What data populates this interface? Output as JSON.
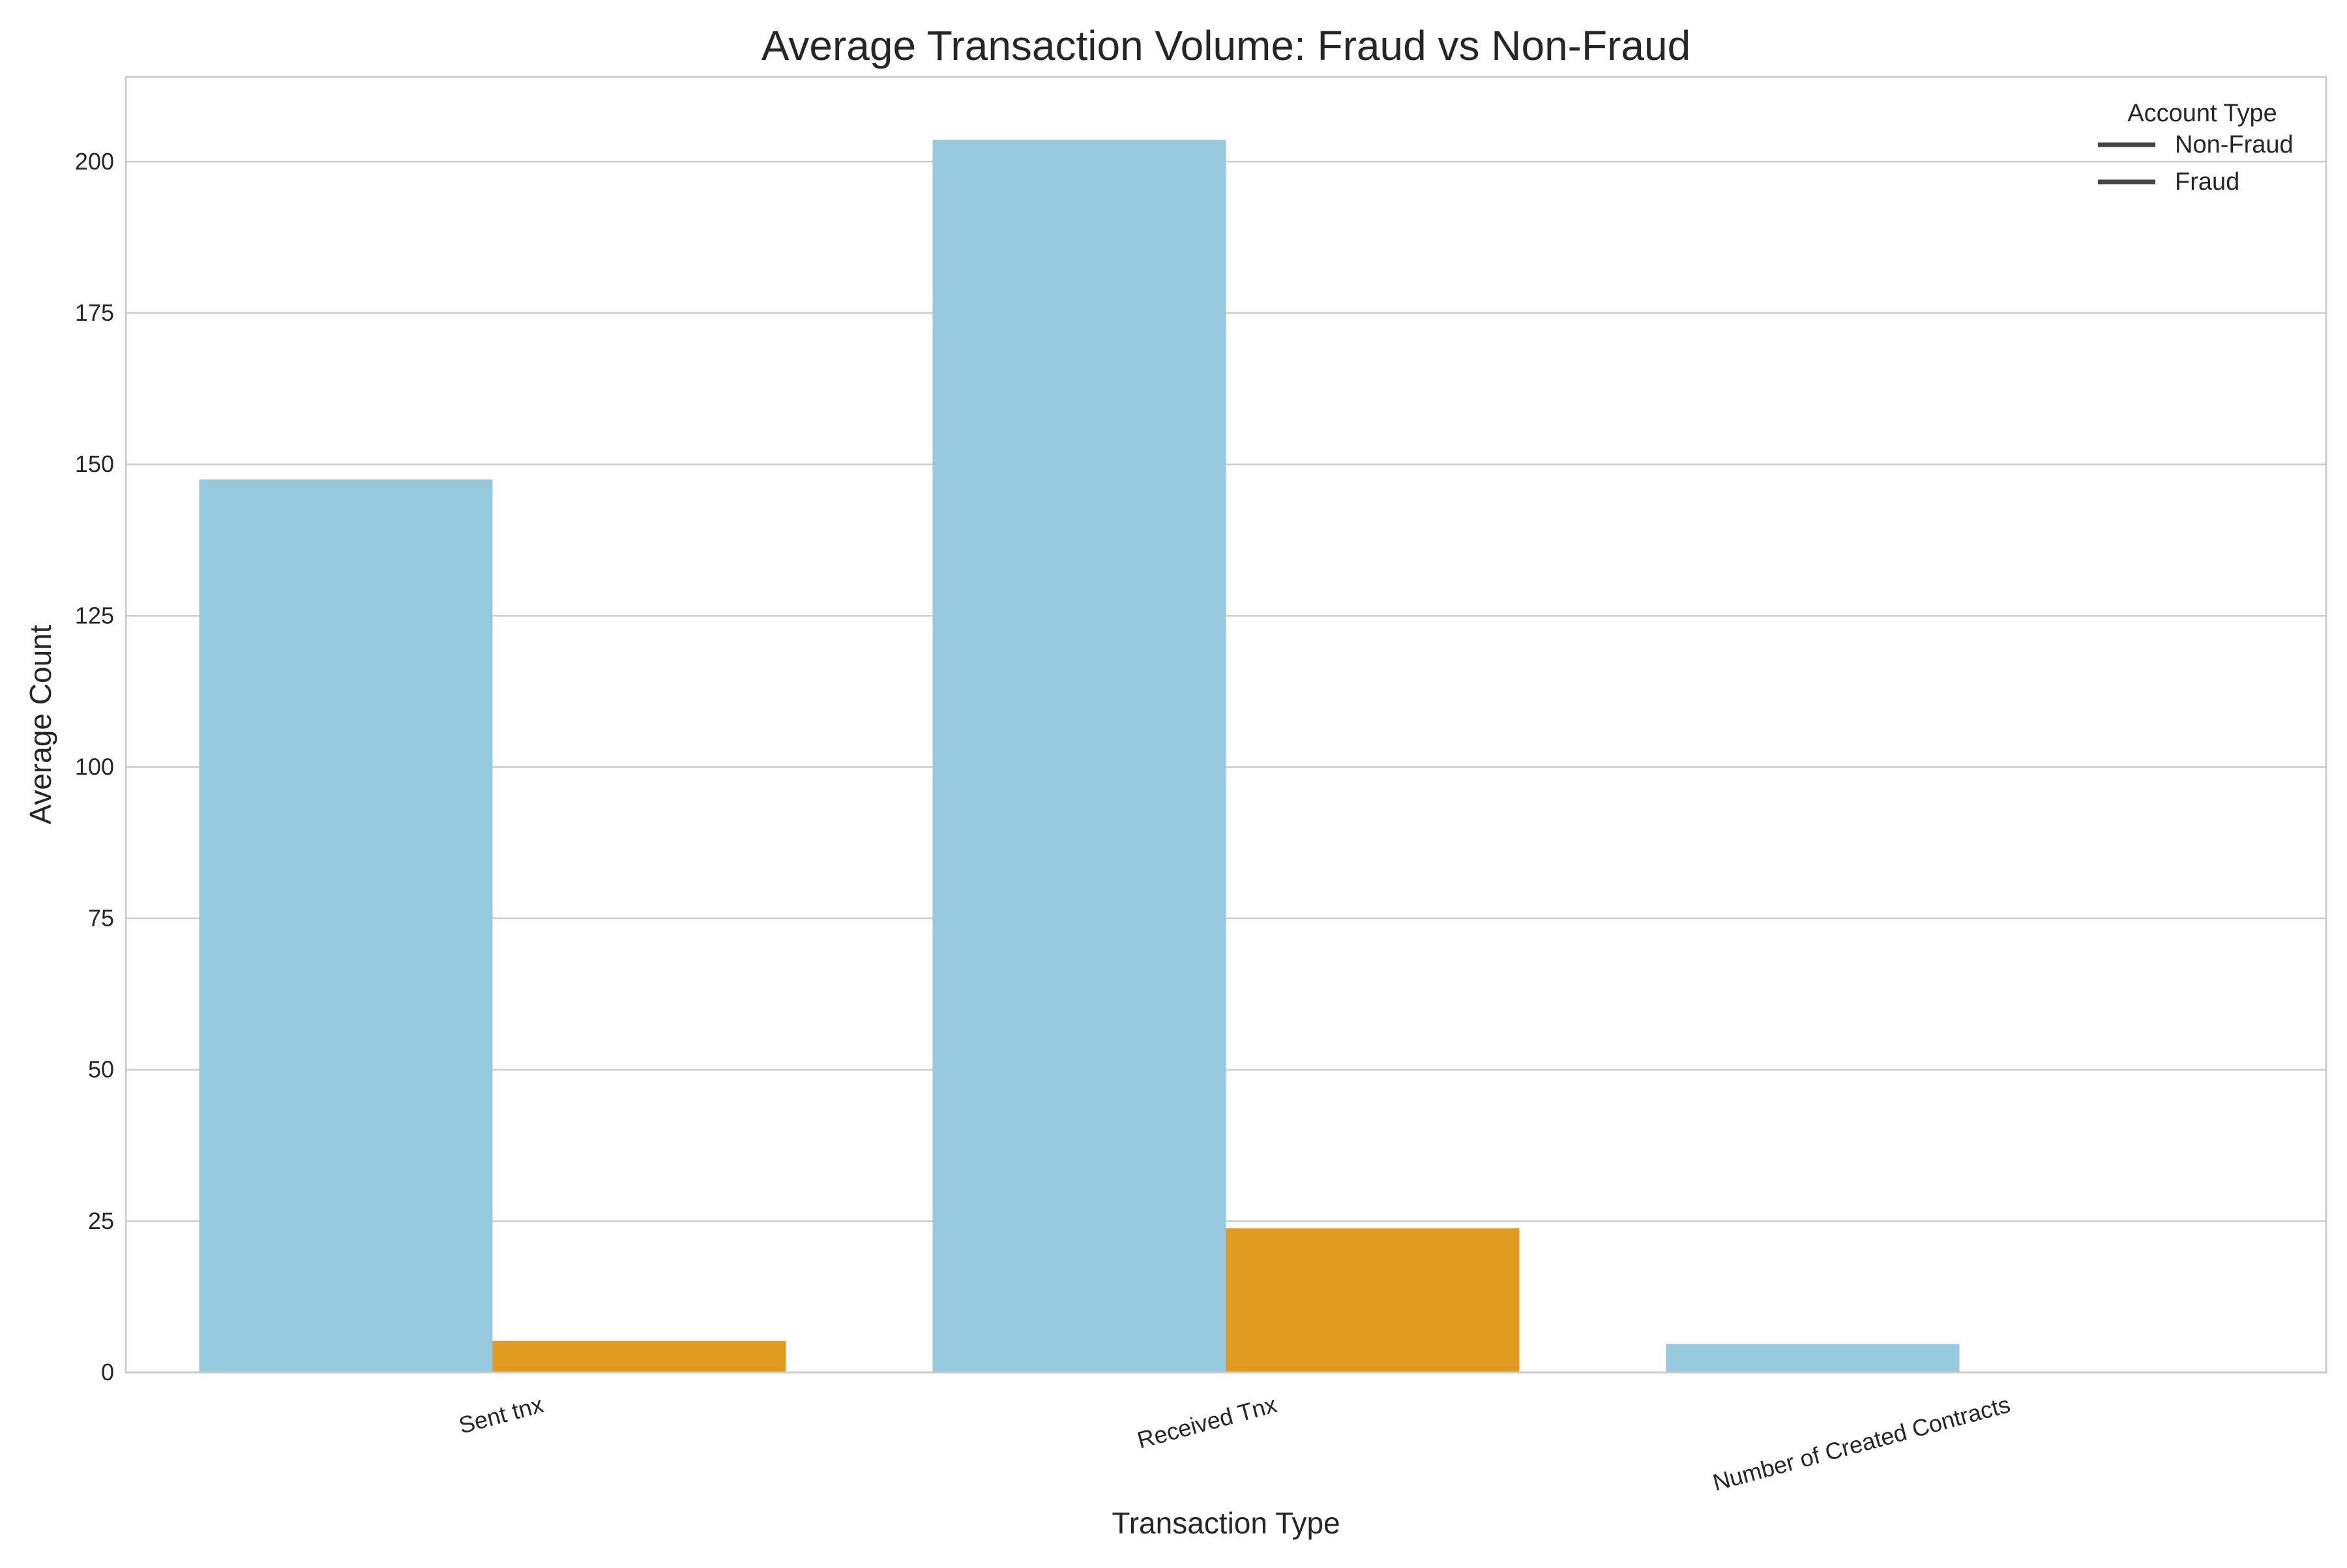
{
  "chart_data": {
    "type": "bar",
    "title": "Average Transaction Volume: Fraud vs Non-Fraud",
    "xlabel": "Transaction Type",
    "ylabel": "Average Count",
    "categories": [
      "Sent tnx",
      "Received Tnx",
      "Number of Created Contracts"
    ],
    "series": [
      {
        "name": "Non-Fraud",
        "color": "#96c8de",
        "values": [
          147.5,
          203.6,
          4.7
        ]
      },
      {
        "name": "Fraud",
        "color": "#e09b20",
        "values": [
          5.2,
          23.8,
          0.0
        ]
      }
    ],
    "ylim": [
      0,
      214
    ],
    "yticks": [
      0,
      25,
      50,
      75,
      100,
      125,
      150,
      175,
      200
    ],
    "grid": "horizontal",
    "legend": {
      "title": "Account Type",
      "placement": "top-right",
      "entries": [
        "Non-Fraud",
        "Fraud"
      ],
      "line_color": "#444444"
    }
  }
}
